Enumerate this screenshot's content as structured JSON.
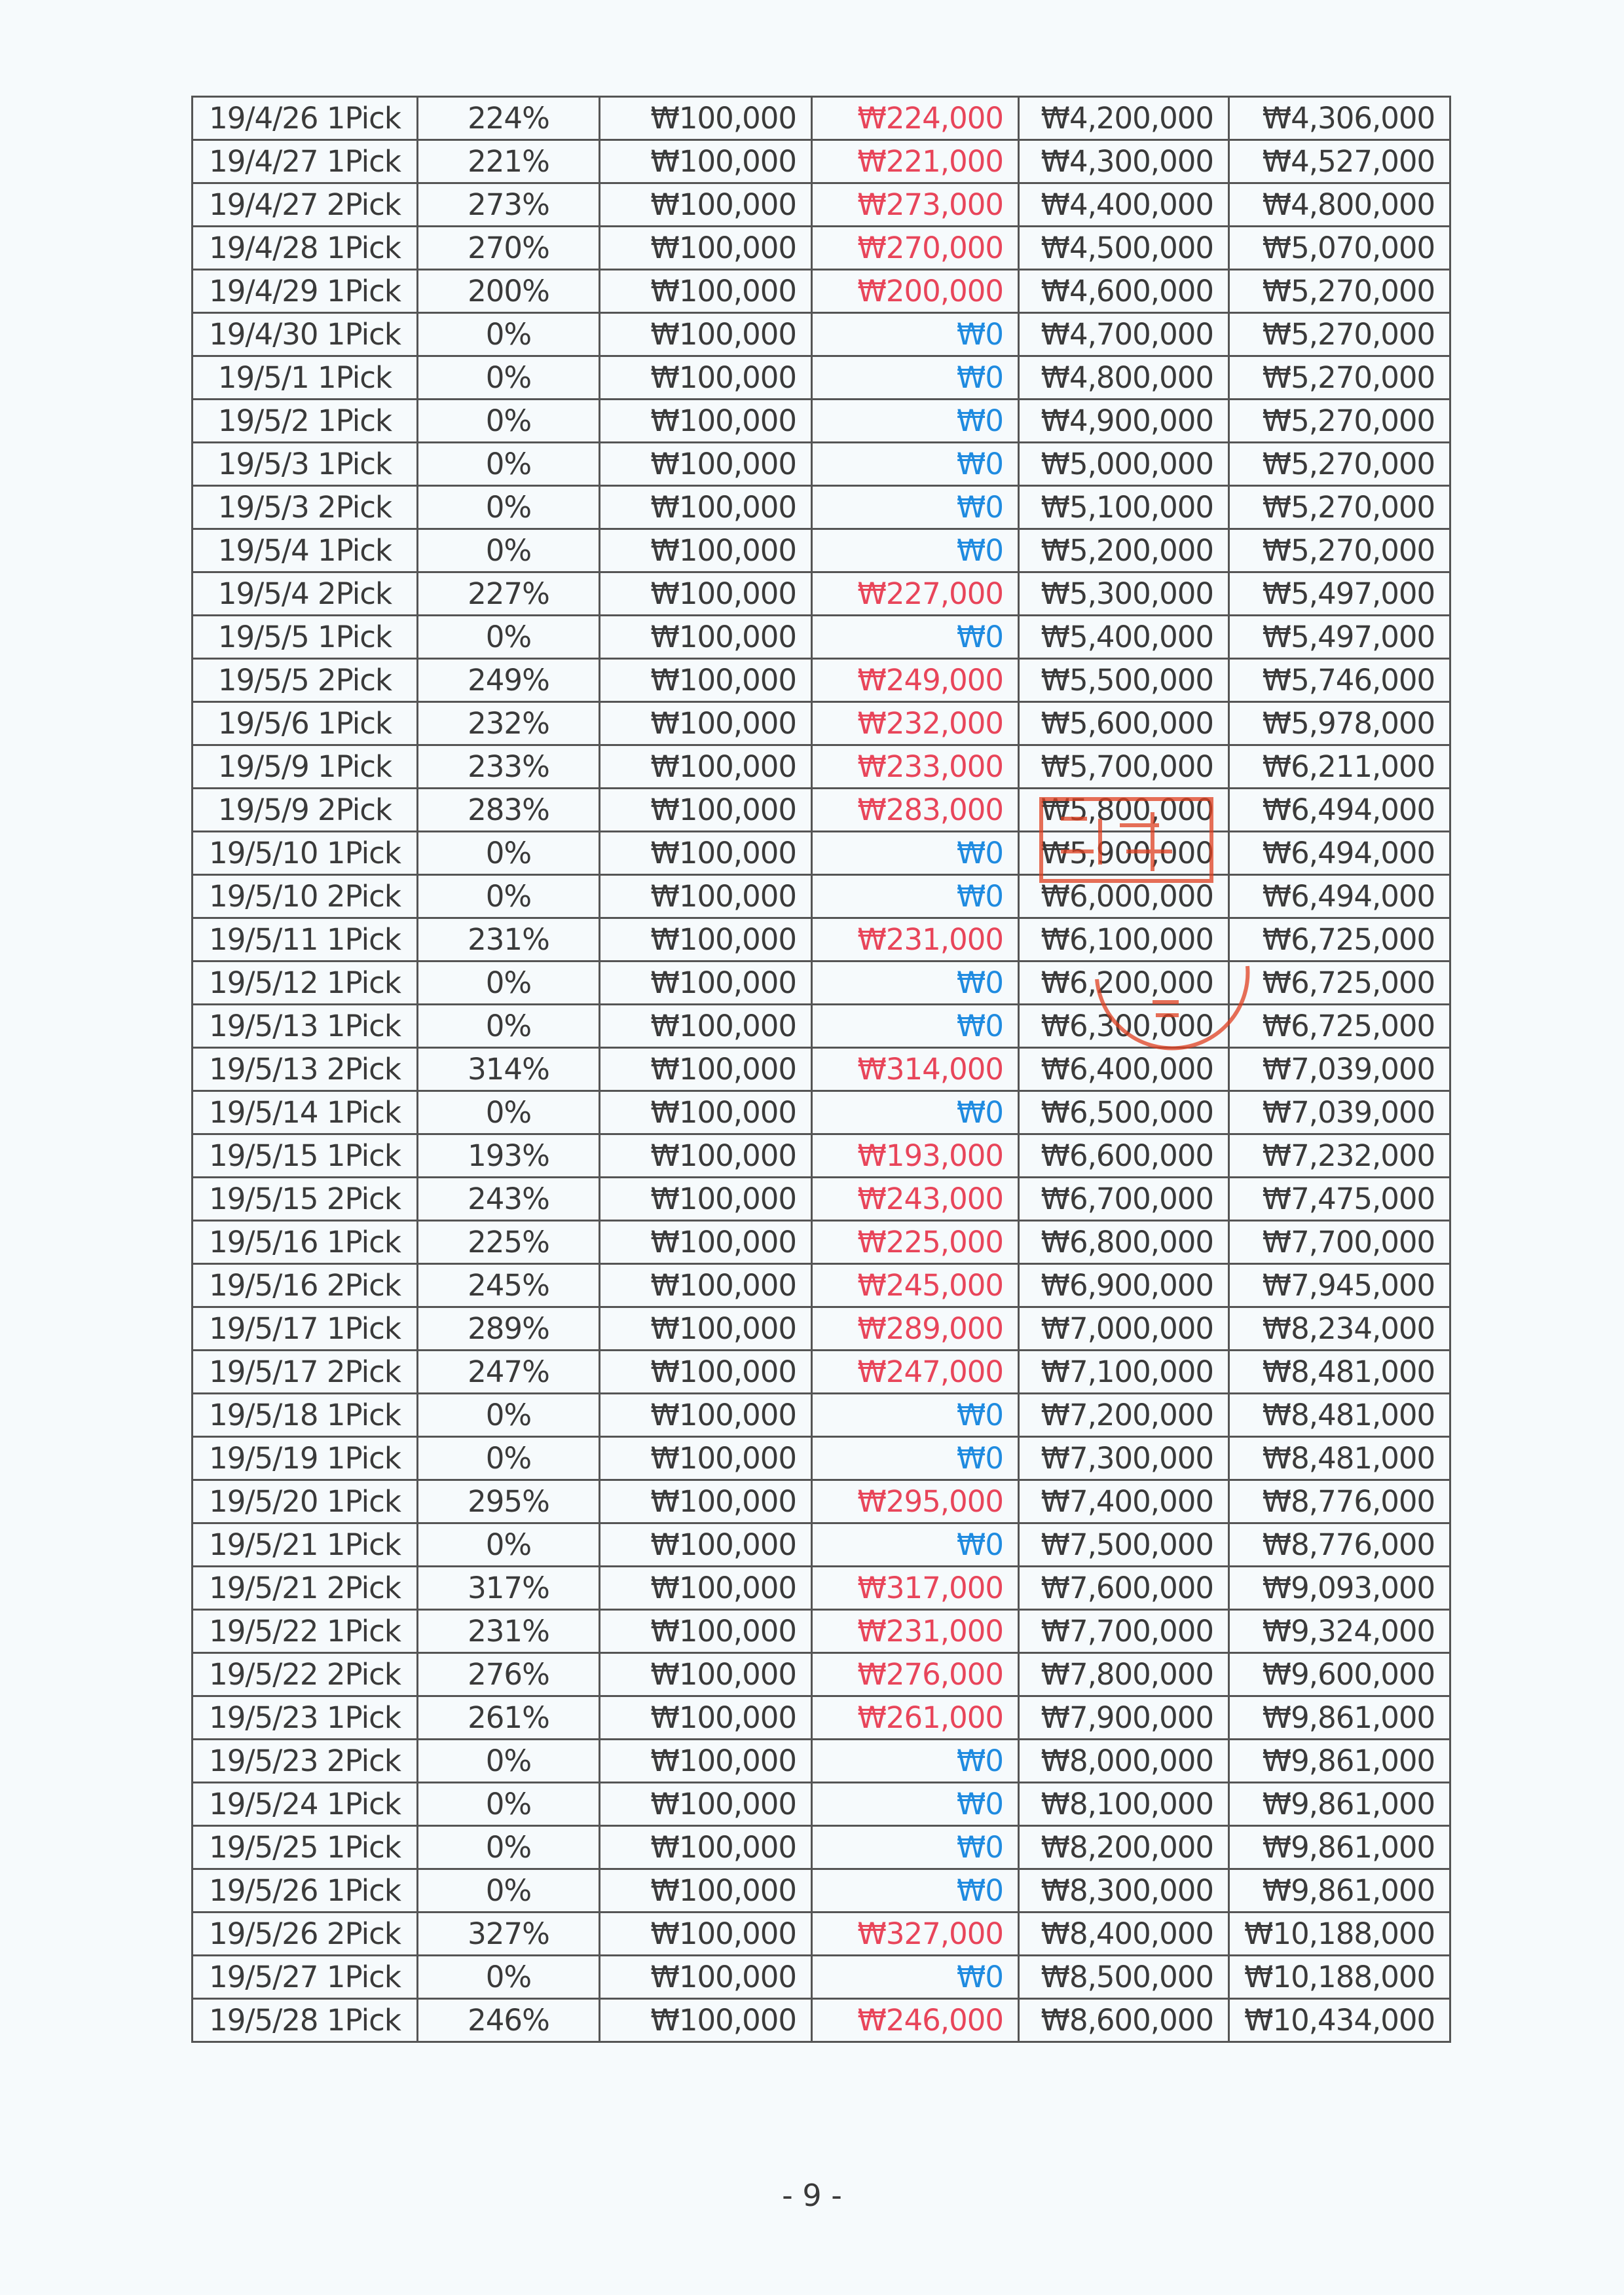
{
  "colors": {
    "positive": "#e8455a",
    "zero": "#1f8be0",
    "text": "#3a3a3a",
    "stamp": "#e04020"
  },
  "rows": [
    [
      "19/4/26 1Pick",
      "224%",
      "₩100,000",
      "₩224,000",
      "₩4,200,000",
      "₩4,306,000"
    ],
    [
      "19/4/27 1Pick",
      "221%",
      "₩100,000",
      "₩221,000",
      "₩4,300,000",
      "₩4,527,000"
    ],
    [
      "19/4/27 2Pick",
      "273%",
      "₩100,000",
      "₩273,000",
      "₩4,400,000",
      "₩4,800,000"
    ],
    [
      "19/4/28 1Pick",
      "270%",
      "₩100,000",
      "₩270,000",
      "₩4,500,000",
      "₩5,070,000"
    ],
    [
      "19/4/29 1Pick",
      "200%",
      "₩100,000",
      "₩200,000",
      "₩4,600,000",
      "₩5,270,000"
    ],
    [
      "19/4/30 1Pick",
      "0%",
      "₩100,000",
      "₩0",
      "₩4,700,000",
      "₩5,270,000"
    ],
    [
      "19/5/1 1Pick",
      "0%",
      "₩100,000",
      "₩0",
      "₩4,800,000",
      "₩5,270,000"
    ],
    [
      "19/5/2 1Pick",
      "0%",
      "₩100,000",
      "₩0",
      "₩4,900,000",
      "₩5,270,000"
    ],
    [
      "19/5/3 1Pick",
      "0%",
      "₩100,000",
      "₩0",
      "₩5,000,000",
      "₩5,270,000"
    ],
    [
      "19/5/3 2Pick",
      "0%",
      "₩100,000",
      "₩0",
      "₩5,100,000",
      "₩5,270,000"
    ],
    [
      "19/5/4 1Pick",
      "0%",
      "₩100,000",
      "₩0",
      "₩5,200,000",
      "₩5,270,000"
    ],
    [
      "19/5/4 2Pick",
      "227%",
      "₩100,000",
      "₩227,000",
      "₩5,300,000",
      "₩5,497,000"
    ],
    [
      "19/5/5 1Pick",
      "0%",
      "₩100,000",
      "₩0",
      "₩5,400,000",
      "₩5,497,000"
    ],
    [
      "19/5/5 2Pick",
      "249%",
      "₩100,000",
      "₩249,000",
      "₩5,500,000",
      "₩5,746,000"
    ],
    [
      "19/5/6 1Pick",
      "232%",
      "₩100,000",
      "₩232,000",
      "₩5,600,000",
      "₩5,978,000"
    ],
    [
      "19/5/9 1Pick",
      "233%",
      "₩100,000",
      "₩233,000",
      "₩5,700,000",
      "₩6,211,000"
    ],
    [
      "19/5/9 2Pick",
      "283%",
      "₩100,000",
      "₩283,000",
      "₩5,800,000",
      "₩6,494,000"
    ],
    [
      "19/5/10 1Pick",
      "0%",
      "₩100,000",
      "₩0",
      "₩5,900,000",
      "₩6,494,000"
    ],
    [
      "19/5/10 2Pick",
      "0%",
      "₩100,000",
      "₩0",
      "₩6,000,000",
      "₩6,494,000"
    ],
    [
      "19/5/11 1Pick",
      "231%",
      "₩100,000",
      "₩231,000",
      "₩6,100,000",
      "₩6,725,000"
    ],
    [
      "19/5/12 1Pick",
      "0%",
      "₩100,000",
      "₩0",
      "₩6,200,000",
      "₩6,725,000"
    ],
    [
      "19/5/13 1Pick",
      "0%",
      "₩100,000",
      "₩0",
      "₩6,300,000",
      "₩6,725,000"
    ],
    [
      "19/5/13 2Pick",
      "314%",
      "₩100,000",
      "₩314,000",
      "₩6,400,000",
      "₩7,039,000"
    ],
    [
      "19/5/14 1Pick",
      "0%",
      "₩100,000",
      "₩0",
      "₩6,500,000",
      "₩7,039,000"
    ],
    [
      "19/5/15 1Pick",
      "193%",
      "₩100,000",
      "₩193,000",
      "₩6,600,000",
      "₩7,232,000"
    ],
    [
      "19/5/15 2Pick",
      "243%",
      "₩100,000",
      "₩243,000",
      "₩6,700,000",
      "₩7,475,000"
    ],
    [
      "19/5/16 1Pick",
      "225%",
      "₩100,000",
      "₩225,000",
      "₩6,800,000",
      "₩7,700,000"
    ],
    [
      "19/5/16 2Pick",
      "245%",
      "₩100,000",
      "₩245,000",
      "₩6,900,000",
      "₩7,945,000"
    ],
    [
      "19/5/17 1Pick",
      "289%",
      "₩100,000",
      "₩289,000",
      "₩7,000,000",
      "₩8,234,000"
    ],
    [
      "19/5/17 2Pick",
      "247%",
      "₩100,000",
      "₩247,000",
      "₩7,100,000",
      "₩8,481,000"
    ],
    [
      "19/5/18 1Pick",
      "0%",
      "₩100,000",
      "₩0",
      "₩7,200,000",
      "₩8,481,000"
    ],
    [
      "19/5/19 1Pick",
      "0%",
      "₩100,000",
      "₩0",
      "₩7,300,000",
      "₩8,481,000"
    ],
    [
      "19/5/20 1Pick",
      "295%",
      "₩100,000",
      "₩295,000",
      "₩7,400,000",
      "₩8,776,000"
    ],
    [
      "19/5/21 1Pick",
      "0%",
      "₩100,000",
      "₩0",
      "₩7,500,000",
      "₩8,776,000"
    ],
    [
      "19/5/21 2Pick",
      "317%",
      "₩100,000",
      "₩317,000",
      "₩7,600,000",
      "₩9,093,000"
    ],
    [
      "19/5/22 1Pick",
      "231%",
      "₩100,000",
      "₩231,000",
      "₩7,700,000",
      "₩9,324,000"
    ],
    [
      "19/5/22 2Pick",
      "276%",
      "₩100,000",
      "₩276,000",
      "₩7,800,000",
      "₩9,600,000"
    ],
    [
      "19/5/23 1Pick",
      "261%",
      "₩100,000",
      "₩261,000",
      "₩7,900,000",
      "₩9,861,000"
    ],
    [
      "19/5/23 2Pick",
      "0%",
      "₩100,000",
      "₩0",
      "₩8,000,000",
      "₩9,861,000"
    ],
    [
      "19/5/24 1Pick",
      "0%",
      "₩100,000",
      "₩0",
      "₩8,100,000",
      "₩9,861,000"
    ],
    [
      "19/5/25 1Pick",
      "0%",
      "₩100,000",
      "₩0",
      "₩8,200,000",
      "₩9,861,000"
    ],
    [
      "19/5/26 1Pick",
      "0%",
      "₩100,000",
      "₩0",
      "₩8,300,000",
      "₩9,861,000"
    ],
    [
      "19/5/26 2Pick",
      "327%",
      "₩100,000",
      "₩327,000",
      "₩8,400,000",
      "₩10,188,000"
    ],
    [
      "19/5/27 1Pick",
      "0%",
      "₩100,000",
      "₩0",
      "₩8,500,000",
      "₩10,188,000"
    ],
    [
      "19/5/28 1Pick",
      "246%",
      "₩100,000",
      "₩246,000",
      "₩8,600,000",
      "₩10,434,000"
    ]
  ],
  "page_number": "- 9 -"
}
